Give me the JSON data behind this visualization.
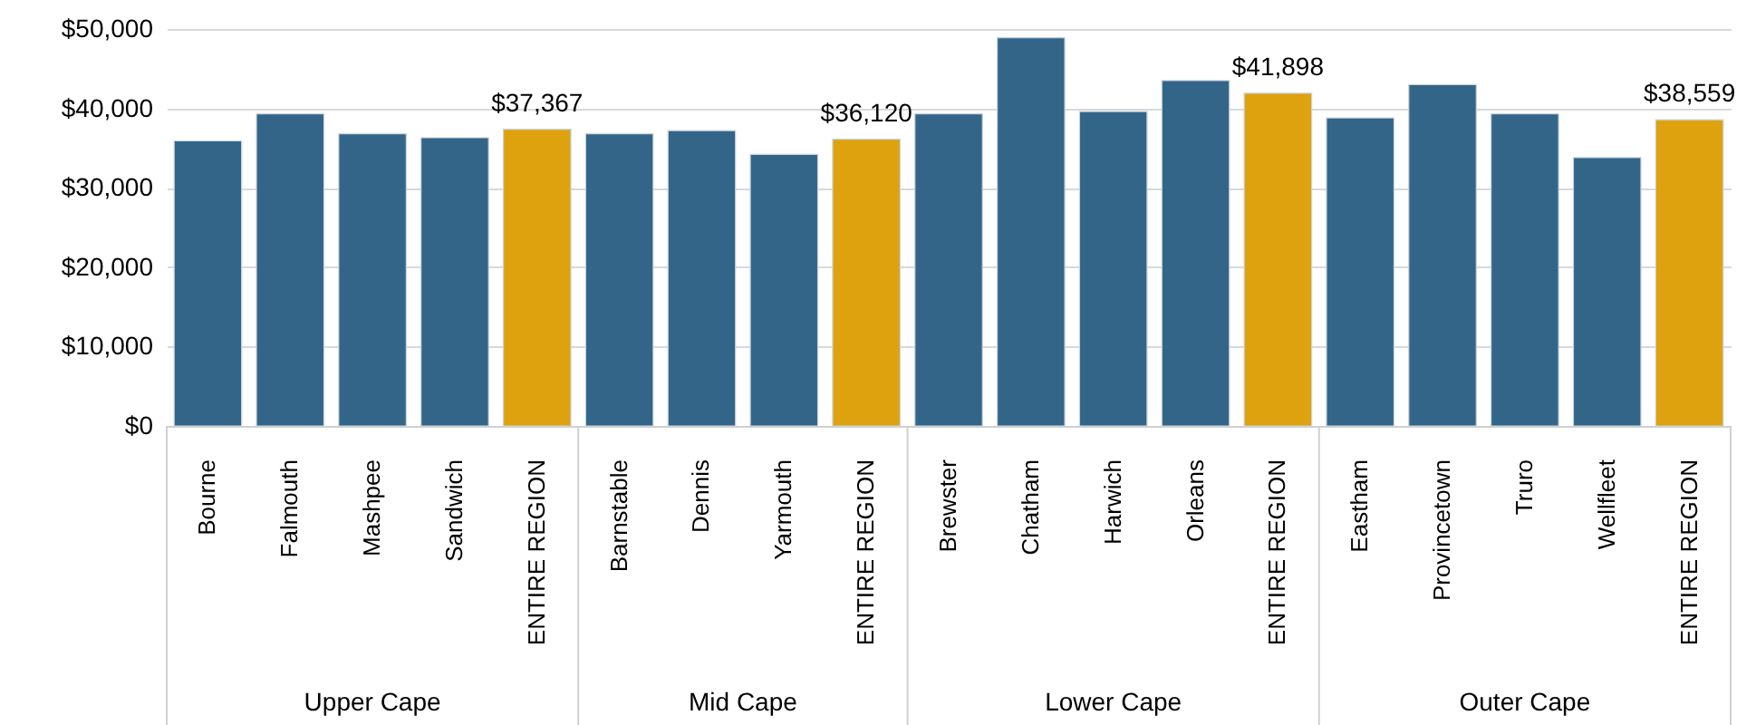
{
  "chart_data": {
    "type": "bar",
    "categories": [
      "Bourne",
      "Falmouth",
      "Mashpee",
      "Sandwich",
      "ENTIRE REGION",
      "Barnstable",
      "Dennis",
      "Yarmouth",
      "ENTIRE REGION",
      "Brewster",
      "Chatham",
      "Harwich",
      "Orleans",
      "ENTIRE REGION",
      "Eastham",
      "Provincetown",
      "Truro",
      "Wellfleet",
      "ENTIRE REGION"
    ],
    "values": [
      35900,
      39300,
      36800,
      36300,
      37367,
      36800,
      37200,
      34200,
      36120,
      39300,
      48900,
      39600,
      43500,
      41898,
      38800,
      43000,
      39300,
      33800,
      38559
    ],
    "colors": [
      "#336588",
      "#336588",
      "#336588",
      "#336588",
      "#dea20f",
      "#336588",
      "#336588",
      "#336588",
      "#dea20f",
      "#336588",
      "#336588",
      "#336588",
      "#336588",
      "#dea20f",
      "#336588",
      "#336588",
      "#336588",
      "#336588",
      "#dea20f"
    ],
    "value_labels": [
      null,
      null,
      null,
      null,
      "$37,367",
      null,
      null,
      null,
      "$36,120",
      null,
      null,
      null,
      null,
      "$41,898",
      null,
      null,
      null,
      null,
      "$38,559"
    ],
    "annotations": [
      "Upper Cape",
      "Mid Cape",
      "Lower Cape",
      "Outer Cape"
    ],
    "ylim": [
      0,
      50000
    ],
    "yticks": [
      {
        "value": 0,
        "label": "$0"
      },
      {
        "value": 10000,
        "label": "$10,000"
      },
      {
        "value": 20000,
        "label": "$20,000"
      },
      {
        "value": 30000,
        "label": "$30,000"
      },
      {
        "value": 40000,
        "label": "$40,000"
      },
      {
        "value": 50000,
        "label": "$50,000"
      }
    ],
    "grid": "y"
  }
}
